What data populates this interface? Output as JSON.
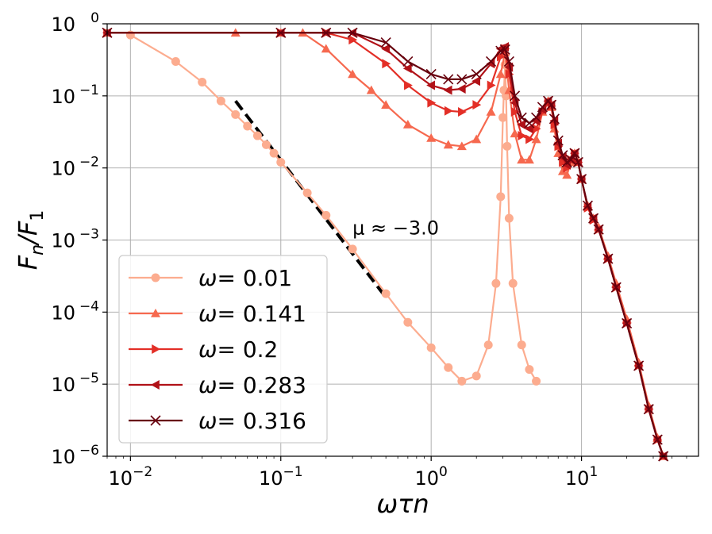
{
  "chart_data": {
    "type": "line",
    "title": "",
    "xlabel": "ωτn",
    "ylabel": "F_n/F_1",
    "xscale": "log",
    "yscale": "log",
    "xlim": [
      0.007,
      60
    ],
    "ylim": [
      1e-06,
      1
    ],
    "grid": true,
    "legend_position": "lower-left",
    "x_ticks": [
      {
        "value": 0.01,
        "base": "10",
        "exp": "−2"
      },
      {
        "value": 0.1,
        "base": "10",
        "exp": "−1"
      },
      {
        "value": 1,
        "base": "10",
        "exp": "0"
      },
      {
        "value": 10,
        "base": "10",
        "exp": "1"
      }
    ],
    "y_ticks": [
      {
        "value": 1,
        "base": "10",
        "exp": "0"
      },
      {
        "value": 0.1,
        "base": "10",
        "exp": "−1"
      },
      {
        "value": 0.01,
        "base": "10",
        "exp": "−2"
      },
      {
        "value": 0.001,
        "base": "10",
        "exp": "−3"
      },
      {
        "value": 0.0001,
        "base": "10",
        "exp": "−4"
      },
      {
        "value": 1e-05,
        "base": "10",
        "exp": "−5"
      },
      {
        "value": 1e-06,
        "base": "10",
        "exp": "−6"
      }
    ],
    "series": [
      {
        "name": "ω= 0.01",
        "legend_prefix": "ω",
        "legend_value": "= 0.01",
        "color": "#fcac8f",
        "marker": "circle",
        "x": [
          0.01,
          0.02,
          0.03,
          0.04,
          0.05,
          0.06,
          0.07,
          0.08,
          0.09,
          0.1,
          0.15,
          0.2,
          0.3,
          0.5,
          0.7,
          1.0,
          1.3,
          1.6,
          2.0,
          2.4,
          2.7,
          2.9,
          3.0,
          3.05,
          3.1,
          3.15,
          3.2,
          3.3,
          3.5,
          4.0,
          4.5,
          5.0
        ],
        "y": [
          0.7,
          0.3,
          0.155,
          0.085,
          0.055,
          0.038,
          0.028,
          0.021,
          0.016,
          0.012,
          0.0045,
          0.0022,
          0.00075,
          0.00018,
          7.2e-05,
          3.2e-05,
          1.7e-05,
          1.1e-05,
          1.3e-05,
          3.5e-05,
          0.00025,
          0.004,
          0.05,
          0.12,
          0.27,
          0.1,
          0.02,
          0.002,
          0.00025,
          3.5e-05,
          1.6e-05,
          1.1e-05
        ]
      },
      {
        "name": "ω= 0.141",
        "legend_prefix": "ω",
        "legend_value": "= 0.141",
        "color": "#f6694f",
        "marker": "triangle-up",
        "x": [
          0.007,
          0.05,
          0.1,
          0.14,
          0.2,
          0.3,
          0.4,
          0.5,
          0.7,
          1.0,
          1.3,
          1.6,
          2.0,
          2.5,
          2.9,
          3.1,
          3.3,
          3.6,
          4.0,
          4.5,
          5.0,
          5.5,
          6.0,
          6.3,
          6.6,
          7.0,
          7.5,
          8.0,
          8.5,
          9.0,
          9.5,
          10,
          11,
          12,
          13,
          15,
          17,
          20,
          24,
          28,
          32,
          35
        ],
        "y": [
          0.75,
          0.75,
          0.75,
          0.75,
          0.45,
          0.2,
          0.12,
          0.075,
          0.04,
          0.026,
          0.021,
          0.02,
          0.025,
          0.06,
          0.2,
          0.4,
          0.12,
          0.03,
          0.013,
          0.013,
          0.025,
          0.06,
          0.085,
          0.07,
          0.035,
          0.016,
          0.009,
          0.008,
          0.012,
          0.016,
          0.012,
          0.007,
          0.003,
          0.002,
          0.0015,
          0.0006,
          0.00025,
          8e-05,
          2e-05,
          5e-06,
          1.8e-06,
          1e-06
        ]
      },
      {
        "name": "ω= 0.2",
        "legend_prefix": "ω",
        "legend_value": "= 0.2",
        "color": "#e32f27",
        "marker": "triangle-right",
        "x": [
          0.007,
          0.1,
          0.2,
          0.3,
          0.5,
          0.7,
          1.0,
          1.3,
          1.6,
          2.0,
          2.5,
          2.9,
          3.1,
          3.3,
          3.6,
          4.0,
          4.5,
          5.0,
          5.5,
          6.0,
          6.3,
          6.6,
          7.0,
          7.5,
          8.0,
          8.5,
          9.0,
          9.5,
          10,
          11,
          12,
          13,
          15,
          17,
          20,
          24,
          28,
          32,
          35
        ],
        "y": [
          0.75,
          0.75,
          0.75,
          0.6,
          0.28,
          0.14,
          0.08,
          0.062,
          0.06,
          0.075,
          0.14,
          0.35,
          0.45,
          0.2,
          0.06,
          0.028,
          0.025,
          0.035,
          0.06,
          0.08,
          0.072,
          0.04,
          0.02,
          0.012,
          0.01,
          0.013,
          0.016,
          0.012,
          0.007,
          0.0028,
          0.0019,
          0.0014,
          0.00055,
          0.00022,
          7e-05,
          1.8e-05,
          4.5e-06,
          1.7e-06,
          1e-06
        ]
      },
      {
        "name": "ω= 0.283",
        "legend_prefix": "ω",
        "legend_value": "= 0.283",
        "color": "#b11218",
        "marker": "triangle-left",
        "x": [
          0.007,
          0.1,
          0.2,
          0.3,
          0.5,
          0.7,
          1.0,
          1.3,
          1.6,
          2.0,
          2.5,
          2.9,
          3.1,
          3.3,
          3.6,
          4.0,
          4.5,
          5.0,
          5.5,
          6.0,
          6.3,
          6.6,
          7.0,
          7.5,
          8.0,
          8.5,
          9.0,
          9.5,
          10,
          11,
          12,
          13,
          15,
          17,
          20,
          24,
          28,
          32,
          35
        ],
        "y": [
          0.75,
          0.75,
          0.75,
          0.75,
          0.45,
          0.24,
          0.14,
          0.12,
          0.125,
          0.16,
          0.28,
          0.45,
          0.48,
          0.25,
          0.08,
          0.04,
          0.035,
          0.045,
          0.065,
          0.085,
          0.075,
          0.045,
          0.022,
          0.014,
          0.011,
          0.013,
          0.016,
          0.012,
          0.007,
          0.0029,
          0.002,
          0.0014,
          0.00055,
          0.00022,
          7e-05,
          1.8e-05,
          4.5e-06,
          1.7e-06,
          1e-06
        ]
      },
      {
        "name": "ω= 0.316",
        "legend_prefix": "ω",
        "legend_value": "= 0.316",
        "color": "#67000d",
        "marker": "x",
        "x": [
          0.007,
          0.1,
          0.2,
          0.3,
          0.5,
          0.7,
          1.0,
          1.3,
          1.6,
          2.0,
          2.5,
          2.9,
          3.1,
          3.3,
          3.6,
          4.0,
          4.5,
          5.0,
          5.5,
          6.0,
          6.3,
          6.6,
          7.0,
          7.5,
          8.0,
          8.5,
          9.0,
          9.5,
          10,
          11,
          12,
          13,
          15,
          17,
          20,
          24,
          28,
          32,
          35
        ],
        "y": [
          0.75,
          0.75,
          0.75,
          0.75,
          0.55,
          0.3,
          0.2,
          0.17,
          0.17,
          0.2,
          0.3,
          0.42,
          0.44,
          0.3,
          0.1,
          0.05,
          0.042,
          0.05,
          0.07,
          0.085,
          0.075,
          0.048,
          0.024,
          0.015,
          0.012,
          0.013,
          0.016,
          0.012,
          0.007,
          0.003,
          0.002,
          0.0014,
          0.00055,
          0.00022,
          7e-05,
          1.8e-05,
          4.5e-06,
          1.7e-06,
          1e-06
        ]
      }
    ],
    "fit_line": {
      "x": [
        0.05,
        0.5
      ],
      "y": [
        0.085,
        0.00016
      ],
      "style": "dashed",
      "color": "#000000"
    },
    "annotations": [
      {
        "text": "μ ≈ −3.0",
        "x": 0.3,
        "y": 0.0012
      }
    ]
  }
}
